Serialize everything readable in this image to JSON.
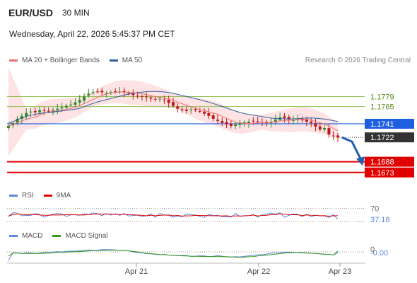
{
  "header": {
    "symbol": "EUR/USD",
    "interval": "30 MIN",
    "datetime": "Wednesday, April 22, 2026 5:45:37 PM CET"
  },
  "legend": {
    "ma20_label": "MA 20 + Bollinger Bands",
    "ma50_label": "MA 50",
    "credit": "Research © 2026 Trading Central"
  },
  "colors": {
    "ma20": "#f07070",
    "ma50": "#2f5f9f",
    "band_fill": "#fde3e3",
    "resistance": "#8fbf4f",
    "support": "#e00000",
    "pivot": "#1e5fe0",
    "candle_up": "#2e8b2e",
    "candle_down": "#c01818",
    "rsi": "#5f86d8",
    "rsi_ma": "#e00000",
    "macd": "#5f86d8",
    "macd_signal": "#3a9a1e",
    "arrow": "#1e5fb0"
  },
  "chart_data": [
    {
      "type": "line",
      "panel": "price",
      "ylim": [
        1.1655,
        1.1815
      ],
      "x_labels": [
        "Apr 21",
        "Apr 22",
        "Apr 23"
      ],
      "levels": [
        {
          "value": 1.1779,
          "label": "1.1779",
          "kind": "resistance"
        },
        {
          "value": 1.1765,
          "label": "1.1765",
          "kind": "resistance"
        },
        {
          "value": 1.1741,
          "label": "1.1741",
          "kind": "pivot"
        },
        {
          "value": 1.1722,
          "label": "1.1722",
          "kind": "last"
        },
        {
          "value": 1.1688,
          "label": "1.1688",
          "kind": "support"
        },
        {
          "value": 1.1673,
          "label": "1.1673",
          "kind": "support"
        }
      ],
      "close": [
        1.1738,
        1.1742,
        1.1748,
        1.1752,
        1.1756,
        1.1758,
        1.1757,
        1.176,
        1.1759,
        1.1758,
        1.176,
        1.1762,
        1.1764,
        1.1766,
        1.1768,
        1.1771,
        1.1774,
        1.1779,
        1.1783,
        1.1785,
        1.1786,
        1.1785,
        1.1784,
        1.1785,
        1.1786,
        1.1786,
        1.1785,
        1.1783,
        1.1781,
        1.178,
        1.1779,
        1.1778,
        1.1776,
        1.1775,
        1.1776,
        1.1774,
        1.177,
        1.1766,
        1.1762,
        1.176,
        1.1759,
        1.1761,
        1.176,
        1.1758,
        1.1755,
        1.1752,
        1.1748,
        1.1745,
        1.1742,
        1.174,
        1.1738,
        1.174,
        1.1742,
        1.1743,
        1.1744,
        1.1745,
        1.1744,
        1.1743,
        1.1742,
        1.1743,
        1.1747,
        1.175,
        1.1749,
        1.1747,
        1.1746,
        1.1748,
        1.1746,
        1.1744,
        1.1742,
        1.1737,
        1.1733,
        1.1735,
        1.1726,
        1.1724,
        1.1722
      ]
    },
    {
      "type": "line",
      "panel": "rsi",
      "ylim": [
        0,
        100
      ],
      "reference": {
        "value": 70,
        "label": "70"
      },
      "current": {
        "value": 37.18,
        "label": "37.18"
      },
      "series": [
        {
          "name": "RSI"
        },
        {
          "name": "9MA"
        }
      ]
    },
    {
      "type": "line",
      "panel": "macd",
      "reference": {
        "value": 0,
        "label": "0"
      },
      "current": {
        "value": -0.0,
        "label": "-0.00"
      },
      "series": [
        {
          "name": "MACD"
        },
        {
          "name": "MACD Signal"
        }
      ]
    }
  ],
  "rsi_legend": {
    "rsi_label": "RSI",
    "ma_label": "9MA"
  },
  "macd_legend": {
    "macd_label": "MACD",
    "signal_label": "MACD Signal"
  }
}
